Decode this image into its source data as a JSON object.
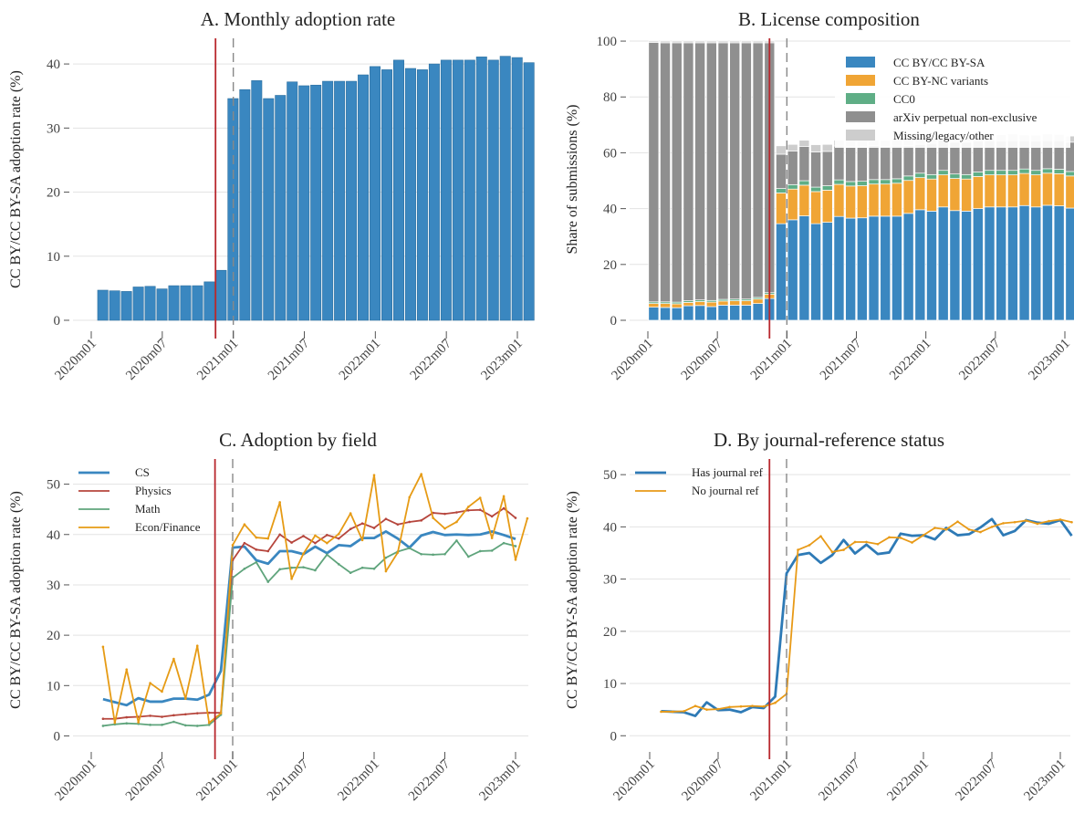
{
  "colors": {
    "cc_by": "#3a87c0",
    "nc": "#f0a535",
    "cc0": "#5fae86",
    "perp": "#8f8f8f",
    "missing": "#cdcdcd",
    "physics": "#b6463d",
    "math": "#5fa47c",
    "econ": "#e69b15",
    "has_ref": "#2e7ab6",
    "no_ref": "#e89a17",
    "event_solid": "#b8272d",
    "event_dashed": "#888888"
  },
  "x_ticks": [
    "2020m01",
    "2020m07",
    "2021m01",
    "2021m07",
    "2022m01",
    "2022m07",
    "2023m01"
  ],
  "markers": {
    "solid_month_index": 10.5,
    "dashed_month_index": 12
  },
  "chart_data": [
    {
      "id": "A",
      "type": "bar",
      "title": "A. Monthly adoption rate",
      "ylabel": "CC BY/CC BY-SA adoption rate (%)",
      "ylim": [
        0,
        44
      ],
      "yticks": [
        0,
        10,
        20,
        30,
        40
      ],
      "grid": true,
      "x_start": "2020m01",
      "values": [
        4.7,
        4.6,
        4.5,
        5.2,
        5.3,
        4.9,
        5.4,
        5.4,
        5.4,
        6.0,
        7.8,
        34.6,
        36.0,
        37.4,
        34.6,
        35.1,
        37.2,
        36.6,
        36.7,
        37.3,
        37.3,
        37.3,
        38.3,
        39.6,
        39.1,
        40.6,
        39.3,
        39.1,
        40.0,
        40.6,
        40.6,
        40.6,
        41.1,
        40.6,
        41.2,
        41.0,
        40.2
      ]
    },
    {
      "id": "B",
      "type": "bar",
      "stacked": true,
      "title": "B. License composition",
      "ylabel": "Share of submissions (%)",
      "ylim": [
        0,
        101
      ],
      "yticks": [
        0,
        20,
        40,
        60,
        80,
        100
      ],
      "grid": true,
      "legend_position": "top-right",
      "series": [
        {
          "name": "CC BY/CC BY-SA",
          "values": [
            4.7,
            4.6,
            4.5,
            5.2,
            5.3,
            4.9,
            5.4,
            5.4,
            5.4,
            6.0,
            7.8,
            34.6,
            36.0,
            37.4,
            34.6,
            35.1,
            37.2,
            36.6,
            36.7,
            37.3,
            37.3,
            37.3,
            38.3,
            39.6,
            39.1,
            40.6,
            39.3,
            39.1,
            40.0,
            40.6,
            40.6,
            40.6,
            41.1,
            40.6,
            41.2,
            41.0,
            40.2
          ]
        },
        {
          "name": "CC BY-NC variants",
          "values": [
            1.3,
            1.4,
            1.4,
            1.2,
            1.4,
            1.6,
            1.5,
            1.6,
            1.6,
            1.6,
            1.5,
            11.0,
            11.0,
            11.0,
            11.5,
            11.5,
            11.5,
            11.5,
            11.5,
            11.5,
            11.5,
            11.8,
            11.8,
            11.5,
            11.5,
            11.5,
            11.5,
            11.5,
            11.5,
            11.5,
            11.5,
            11.5,
            11.5,
            11.5,
            11.5,
            11.5,
            11.5
          ]
        },
        {
          "name": "CC0",
          "values": [
            0.6,
            0.6,
            0.6,
            0.6,
            0.6,
            0.6,
            0.6,
            0.6,
            0.6,
            0.6,
            0.6,
            1.6,
            1.6,
            1.6,
            1.6,
            1.6,
            1.6,
            1.6,
            1.6,
            1.6,
            1.6,
            1.6,
            1.6,
            1.6,
            1.6,
            1.6,
            1.6,
            1.6,
            1.6,
            1.6,
            1.6,
            1.6,
            1.6,
            1.6,
            1.6,
            1.6,
            1.6
          ]
        },
        {
          "name": "arXiv perpetual non-exclusive",
          "values": [
            92.9,
            92.8,
            92.9,
            92.4,
            92.1,
            92.3,
            91.9,
            91.8,
            91.8,
            91.2,
            89.5,
            12.3,
            12.0,
            12.3,
            12.6,
            12.3,
            12.1,
            12.3,
            12.2,
            12.2,
            11.9,
            11.7,
            10.8,
            10.3,
            11.2,
            10.8,
            11.4,
            11.6,
            11.2,
            10.7,
            10.6,
            10.7,
            10.2,
            10.6,
            10.1,
            10.3,
            10.5
          ]
        },
        {
          "name": "Missing/legacy/other",
          "values": [
            0.5,
            0.6,
            0.6,
            0.6,
            0.6,
            0.6,
            0.6,
            0.6,
            0.6,
            0.6,
            0.6,
            3.0,
            2.4,
            2.2,
            2.6,
            2.5,
            2.1,
            2.4,
            2.4,
            2.0,
            2.1,
            2.0,
            2.2,
            2.5,
            2.2,
            2.3,
            2.2,
            2.1,
            2.2,
            2.2,
            2.2,
            2.3,
            2.0,
            2.0,
            2.3,
            2.2,
            2.2
          ]
        }
      ]
    },
    {
      "id": "C",
      "type": "line",
      "title": "C. Adoption by field",
      "ylabel": "CC BY/CC BY-SA adoption rate (%)",
      "ylim": [
        -1,
        55
      ],
      "yticks": [
        0,
        10,
        20,
        30,
        40,
        50
      ],
      "grid": true,
      "legend_position": "top-left",
      "series": [
        {
          "name": "CS",
          "values": [
            7.3,
            6.7,
            6.1,
            7.5,
            6.8,
            6.8,
            7.4,
            7.4,
            7.2,
            8.2,
            12.9,
            37.4,
            37.6,
            34.9,
            34.2,
            36.7,
            36.7,
            36.1,
            37.6,
            36.3,
            37.9,
            37.7,
            39.3,
            39.3,
            40.6,
            39.2,
            37.4,
            39.8,
            40.5,
            39.9,
            40.0,
            39.9,
            40.0,
            40.6,
            39.9,
            39.1
          ]
        },
        {
          "name": "Physics",
          "values": [
            3.4,
            3.4,
            3.7,
            3.8,
            4.0,
            3.8,
            4.1,
            4.3,
            4.5,
            4.6,
            4.6,
            34.9,
            38.3,
            37.0,
            36.7,
            40.0,
            38.4,
            39.7,
            38.3,
            39.9,
            39.2,
            41.1,
            42.2,
            41.3,
            43.1,
            42.0,
            42.5,
            42.8,
            44.3,
            44.1,
            44.4,
            44.8,
            44.9,
            43.6,
            45.2,
            43.3
          ]
        },
        {
          "name": "Math",
          "values": [
            2.0,
            2.3,
            2.5,
            2.4,
            2.2,
            2.2,
            2.8,
            2.1,
            2.0,
            2.2,
            4.2,
            31.4,
            33.2,
            34.5,
            30.6,
            33.1,
            33.4,
            33.5,
            32.9,
            36.0,
            34.1,
            32.4,
            33.4,
            33.2,
            35.4,
            36.6,
            37.3,
            36.1,
            36.0,
            36.1,
            38.8,
            35.6,
            36.7,
            36.8,
            38.3,
            37.7
          ]
        },
        {
          "name": "Econ/Finance",
          "values": [
            17.7,
            2.6,
            13.2,
            2.7,
            10.5,
            8.8,
            15.3,
            7.4,
            17.9,
            2.6,
            4.5,
            37.9,
            42.0,
            39.4,
            39.2,
            46.4,
            31.2,
            36.2,
            39.8,
            38.3,
            40.1,
            44.2,
            38.9,
            51.8,
            32.7,
            36.4,
            47.4,
            52.0,
            43.3,
            41.2,
            42.5,
            45.5,
            47.3,
            39.3,
            47.6,
            35.0,
            43.2
          ]
        }
      ]
    },
    {
      "id": "D",
      "type": "line",
      "title": "D. By journal-reference status",
      "ylabel": "CC BY/CC BY-SA adoption rate (%)",
      "ylim": [
        -1,
        53
      ],
      "yticks": [
        0,
        10,
        20,
        30,
        40,
        50
      ],
      "grid": true,
      "legend_position": "top-left",
      "series": [
        {
          "name": "Has journal ref",
          "values": [
            4.7,
            4.6,
            4.5,
            3.8,
            6.4,
            4.9,
            5.0,
            4.5,
            5.5,
            5.3,
            7.5,
            31.1,
            34.6,
            35.0,
            33.1,
            34.6,
            37.5,
            34.9,
            36.6,
            34.8,
            35.1,
            38.7,
            38.3,
            38.4,
            37.6,
            39.8,
            38.4,
            38.6,
            39.9,
            41.5,
            38.4,
            39.2,
            41.3,
            40.8,
            40.6,
            41.3,
            38.3
          ]
        },
        {
          "name": "No journal ref",
          "values": [
            4.6,
            4.6,
            4.7,
            5.7,
            5.0,
            5.1,
            5.5,
            5.6,
            5.7,
            5.6,
            6.3,
            8.0,
            35.6,
            36.5,
            38.2,
            35.2,
            35.6,
            37.1,
            37.1,
            36.7,
            38.0,
            37.9,
            37.0,
            38.4,
            39.8,
            39.5,
            41.0,
            39.5,
            39.0,
            40.0,
            40.7,
            40.9,
            41.2,
            40.6,
            41.1,
            41.4,
            40.9
          ]
        }
      ]
    }
  ]
}
